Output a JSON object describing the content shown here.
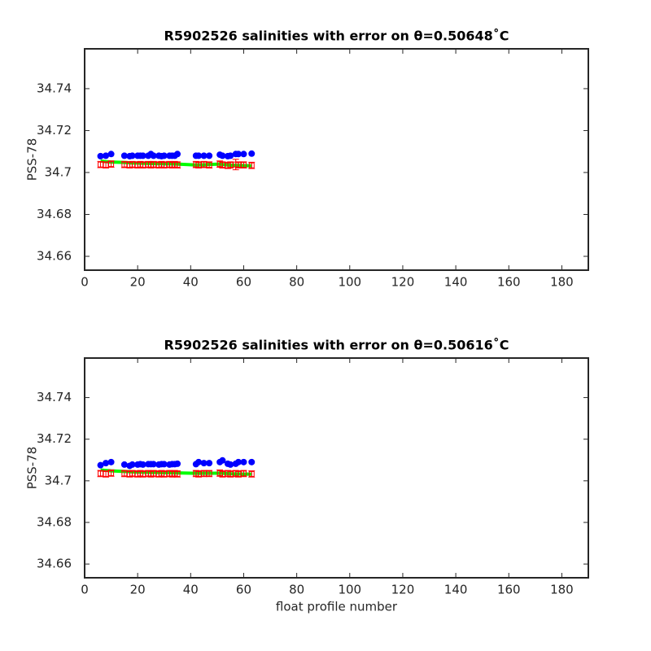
{
  "chart_data": [
    {
      "type": "errorbar",
      "title": "R5902526 salinities with error on θ=0.50648˚C",
      "ylabel": "PSS-78",
      "xlim": [
        0,
        190
      ],
      "xticks": [
        0,
        20,
        40,
        60,
        80,
        100,
        120,
        140,
        160,
        180
      ],
      "ylim": [
        34.6534,
        34.759
      ],
      "yticks": [
        34.66,
        34.68,
        34.7,
        34.72,
        34.74
      ],
      "x": [
        6,
        8,
        10,
        15,
        17,
        18,
        20,
        21,
        22,
        24,
        25,
        26,
        28,
        29,
        30,
        32,
        33,
        34,
        35,
        42,
        43,
        45,
        47,
        51,
        52,
        54,
        55,
        57,
        58,
        60,
        63
      ],
      "series": [
        {
          "color": "#0000ff",
          "values": [
            34.7078,
            34.708,
            34.7088,
            34.708,
            34.7078,
            34.708,
            34.708,
            34.708,
            34.708,
            34.708,
            34.7088,
            34.708,
            34.708,
            34.7078,
            34.708,
            34.708,
            34.708,
            34.708,
            34.7088,
            34.708,
            34.708,
            34.708,
            34.708,
            34.7085,
            34.708,
            34.7078,
            34.708,
            34.7088,
            34.7088,
            34.7088,
            34.709
          ]
        },
        {
          "color": "#ff0000",
          "values": [
            34.7038,
            34.7036,
            34.704,
            34.7038,
            34.7036,
            34.7038,
            34.7036,
            34.7038,
            34.7036,
            34.7038,
            34.7036,
            34.7038,
            34.7036,
            34.7038,
            34.7036,
            34.7038,
            34.7036,
            34.7038,
            34.7036,
            34.7038,
            34.7036,
            34.7038,
            34.7036,
            34.704,
            34.7036,
            34.7034,
            34.7036,
            34.7038,
            34.7036,
            34.7036,
            34.7034
          ],
          "errors": [
            0.0015,
            0.0015,
            0.0015,
            0.0015,
            0.0015,
            0.0015,
            0.0015,
            0.0015,
            0.0015,
            0.0015,
            0.0015,
            0.0015,
            0.0015,
            0.0015,
            0.0015,
            0.0015,
            0.0015,
            0.0015,
            0.0015,
            0.0015,
            0.0015,
            0.0015,
            0.0015,
            0.0015,
            0.0015,
            0.0015,
            0.0015,
            0.0025,
            0.0015,
            0.0015,
            0.0015
          ]
        },
        {
          "color": "#00ff00",
          "values": [
            34.7055,
            34.7052,
            34.705,
            34.7048,
            34.7046,
            34.7045,
            34.7045,
            34.7044,
            34.7044,
            34.7043,
            34.7043,
            34.7042,
            34.7042,
            34.7042,
            34.7041,
            34.7041,
            34.7041,
            34.704,
            34.704,
            34.7036,
            34.7036,
            34.7037,
            34.7038,
            34.704,
            34.7038,
            34.7036,
            34.7035,
            34.7034,
            34.7034,
            34.7033,
            34.7032
          ]
        }
      ]
    },
    {
      "type": "errorbar",
      "title": "R5902526 salinities with error on θ=0.50616˚C",
      "ylabel": "PSS-78",
      "xlabel": "float profile number",
      "xlim": [
        0,
        190
      ],
      "xticks": [
        0,
        20,
        40,
        60,
        80,
        100,
        120,
        140,
        160,
        180
      ],
      "ylim": [
        34.6534,
        34.759
      ],
      "yticks": [
        34.66,
        34.68,
        34.7,
        34.72,
        34.74
      ],
      "x": [
        6,
        8,
        10,
        15,
        17,
        18,
        20,
        21,
        22,
        24,
        25,
        26,
        28,
        29,
        30,
        32,
        33,
        34,
        35,
        42,
        43,
        45,
        47,
        51,
        52,
        54,
        55,
        57,
        58,
        60,
        63
      ],
      "series": [
        {
          "color": "#0000ff",
          "values": [
            34.7075,
            34.7085,
            34.709,
            34.7078,
            34.7072,
            34.7078,
            34.7078,
            34.708,
            34.7078,
            34.708,
            34.708,
            34.708,
            34.7078,
            34.708,
            34.708,
            34.7078,
            34.708,
            34.708,
            34.7082,
            34.708,
            34.709,
            34.7085,
            34.7085,
            34.709,
            34.7098,
            34.7082,
            34.7078,
            34.7082,
            34.709,
            34.709,
            34.709
          ]
        },
        {
          "color": "#ff0000",
          "values": [
            34.7035,
            34.7033,
            34.7037,
            34.7035,
            34.7033,
            34.7035,
            34.7033,
            34.7035,
            34.7033,
            34.7035,
            34.7033,
            34.7035,
            34.7033,
            34.7035,
            34.7033,
            34.7035,
            34.7033,
            34.7035,
            34.7033,
            34.7035,
            34.7033,
            34.7035,
            34.7035,
            34.7037,
            34.7033,
            34.7035,
            34.7033,
            34.7035,
            34.7033,
            34.7035,
            34.7033
          ],
          "errors": [
            0.0015,
            0.0015,
            0.0015,
            0.0015,
            0.0015,
            0.0015,
            0.0015,
            0.0015,
            0.0015,
            0.0015,
            0.0015,
            0.0015,
            0.0015,
            0.0015,
            0.0015,
            0.0015,
            0.0015,
            0.0015,
            0.0015,
            0.0015,
            0.0015,
            0.0015,
            0.0015,
            0.0015,
            0.0015,
            0.0015,
            0.0015,
            0.0015,
            0.0015,
            0.0015,
            0.0015
          ]
        },
        {
          "color": "#00ff00",
          "values": [
            34.7052,
            34.705,
            34.7048,
            34.7045,
            34.7044,
            34.7043,
            34.7042,
            34.7042,
            34.7041,
            34.7041,
            34.704,
            34.704,
            34.704,
            34.7039,
            34.7039,
            34.7039,
            34.7038,
            34.7038,
            34.7038,
            34.7036,
            34.7036,
            34.7036,
            34.7036,
            34.7037,
            34.7036,
            34.7035,
            34.7034,
            34.7033,
            34.7033,
            34.7032,
            34.7032
          ]
        }
      ]
    }
  ]
}
